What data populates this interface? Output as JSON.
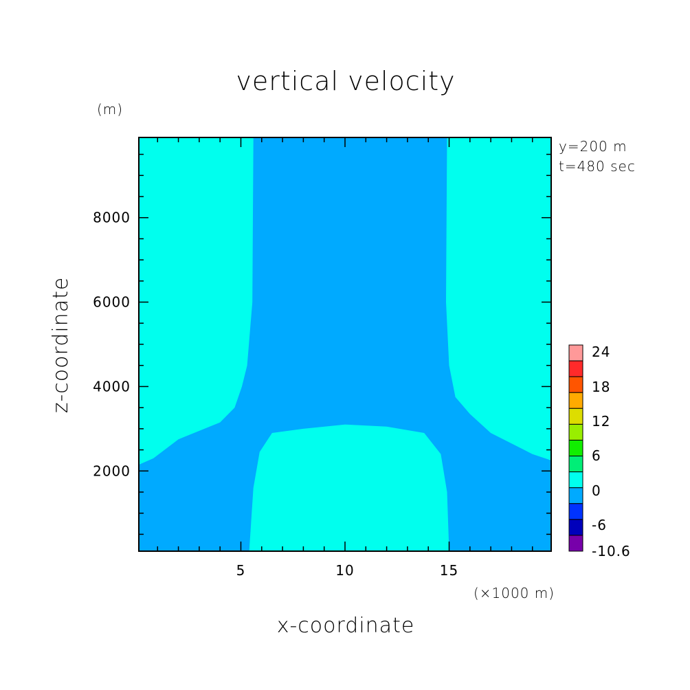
{
  "chart_data": {
    "type": "heatmap",
    "title": "vertical velocity",
    "xlabel": "x-coordinate",
    "ylabel": "z-coordinate",
    "x_unit": "(×1000 m)",
    "y_unit": "(m)",
    "annotations": [
      "y=200 m",
      "t=480 sec"
    ],
    "xlim": [
      0.1,
      19.9
    ],
    "ylim": [
      100,
      9900
    ],
    "x_ticks": [
      5,
      10,
      15
    ],
    "y_ticks": [
      2000,
      4000,
      6000,
      8000
    ],
    "x_minor_step": 1,
    "y_minor_step": 500,
    "background_level_color": "#00aaff",
    "regions": [
      {
        "name": "left-upper-positive",
        "color": "#00ffee",
        "polygon": [
          [
            0.1,
            9900
          ],
          [
            5.6,
            9900
          ],
          [
            5.55,
            6000
          ],
          [
            5.3,
            4500
          ],
          [
            5.05,
            4000
          ],
          [
            4.7,
            3500
          ],
          [
            4.0,
            3150
          ],
          [
            2.0,
            2750
          ],
          [
            0.8,
            2300
          ],
          [
            0.1,
            2150
          ]
        ]
      },
      {
        "name": "right-upper-positive",
        "color": "#00ffee",
        "polygon": [
          [
            14.9,
            9900
          ],
          [
            19.9,
            9900
          ],
          [
            19.9,
            2250
          ],
          [
            19.0,
            2400
          ],
          [
            17.0,
            2900
          ],
          [
            16.0,
            3350
          ],
          [
            15.3,
            3750
          ],
          [
            15.0,
            4500
          ],
          [
            14.85,
            6000
          ]
        ]
      },
      {
        "name": "lower-center-positive",
        "color": "#00ffee",
        "polygon": [
          [
            5.4,
            100
          ],
          [
            15.0,
            100
          ],
          [
            14.9,
            1500
          ],
          [
            14.6,
            2400
          ],
          [
            13.8,
            2900
          ],
          [
            12.0,
            3050
          ],
          [
            10.0,
            3100
          ],
          [
            8.0,
            3000
          ],
          [
            6.5,
            2900
          ],
          [
            5.9,
            2450
          ],
          [
            5.6,
            1600
          ]
        ]
      }
    ],
    "colorbar": {
      "labels": [
        "24",
        "18",
        "12",
        "6",
        "0",
        "-6",
        "-10.6"
      ],
      "colors": [
        "#ff9999",
        "#ff2a2a",
        "#ff5500",
        "#ffaa00",
        "#dddd00",
        "#99ee00",
        "#11ee00",
        "#00ee77",
        "#00ffee",
        "#00aaff",
        "#0033ff",
        "#0000bb",
        "#7700aa"
      ]
    }
  }
}
